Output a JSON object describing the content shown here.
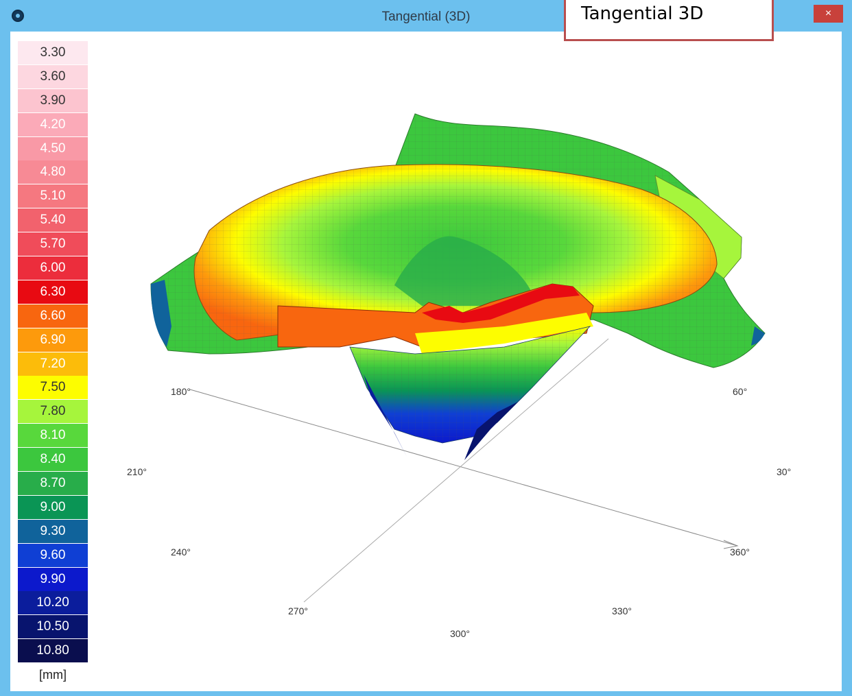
{
  "window": {
    "title": "Tangential (3D)",
    "close_label": "×"
  },
  "callout": {
    "text": "Tangential 3D"
  },
  "legend": {
    "unit": "[mm]",
    "items": [
      {
        "label": "3.30",
        "color": "#fde8ef",
        "text": "#333333"
      },
      {
        "label": "3.60",
        "color": "#fdd7e0",
        "text": "#333333"
      },
      {
        "label": "3.90",
        "color": "#fcc4cf",
        "text": "#333333"
      },
      {
        "label": "4.20",
        "color": "#fbaab8",
        "text": "#ffffff"
      },
      {
        "label": "4.50",
        "color": "#f999a6",
        "text": "#ffffff"
      },
      {
        "label": "4.80",
        "color": "#f78a95",
        "text": "#ffffff"
      },
      {
        "label": "5.10",
        "color": "#f57880",
        "text": "#ffffff"
      },
      {
        "label": "5.40",
        "color": "#f2626d",
        "text": "#ffffff"
      },
      {
        "label": "5.70",
        "color": "#f04c5a",
        "text": "#ffffff"
      },
      {
        "label": "6.00",
        "color": "#ec2d3c",
        "text": "#ffffff"
      },
      {
        "label": "6.30",
        "color": "#e80a12",
        "text": "#ffffff"
      },
      {
        "label": "6.60",
        "color": "#f8660f",
        "text": "#ffffff"
      },
      {
        "label": "6.90",
        "color": "#fd9a0c",
        "text": "#ffffff"
      },
      {
        "label": "7.20",
        "color": "#fcbc0a",
        "text": "#ffffff"
      },
      {
        "label": "7.50",
        "color": "#fdfd00",
        "text": "#333333"
      },
      {
        "label": "7.80",
        "color": "#a6f53c",
        "text": "#333333"
      },
      {
        "label": "8.10",
        "color": "#58d83c",
        "text": "#ffffff"
      },
      {
        "label": "8.40",
        "color": "#3cc73e",
        "text": "#ffffff"
      },
      {
        "label": "8.70",
        "color": "#28ad4a",
        "text": "#ffffff"
      },
      {
        "label": "9.00",
        "color": "#0a9555",
        "text": "#ffffff"
      },
      {
        "label": "9.30",
        "color": "#10639b",
        "text": "#ffffff"
      },
      {
        "label": "9.60",
        "color": "#0f3fd4",
        "text": "#ffffff"
      },
      {
        "label": "9.90",
        "color": "#0c19cc",
        "text": "#ffffff"
      },
      {
        "label": "10.20",
        "color": "#0b1d9c",
        "text": "#ffffff"
      },
      {
        "label": "10.50",
        "color": "#08146e",
        "text": "#ffffff"
      },
      {
        "label": "10.80",
        "color": "#0a0e4e",
        "text": "#ffffff"
      }
    ]
  },
  "axes": {
    "a180": "180°",
    "a60": "60°",
    "a210": "210°",
    "a30": "30°",
    "a240": "240°",
    "a360": "360°",
    "a270": "270°",
    "a330": "330°",
    "a300": "300°"
  }
}
